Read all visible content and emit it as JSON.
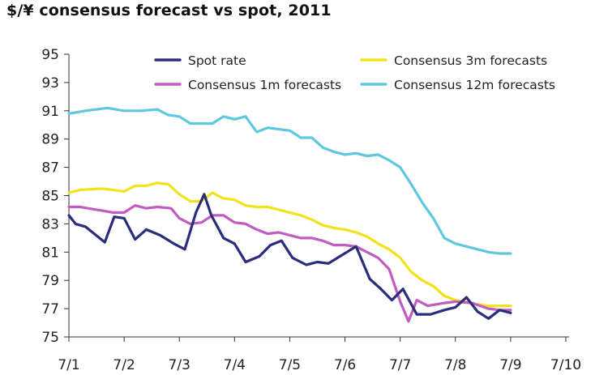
{
  "chart_data": {
    "type": "line",
    "title": "$/¥ consensus forecast vs spot, 2011",
    "xlabel": "",
    "ylabel": "",
    "ylim": [
      75,
      95
    ],
    "x_tick_labels": [
      "7/1",
      "7/2",
      "7/3",
      "7/4",
      "7/5",
      "7/6",
      "7/7",
      "7/8",
      "7/9",
      "7/10"
    ],
    "y_ticks": [
      75,
      77,
      79,
      81,
      83,
      85,
      87,
      89,
      91,
      93,
      95
    ],
    "legend_position": "top-right",
    "series": [
      {
        "name": "Spot rate",
        "color": "#2b2d7c",
        "points": [
          [
            0,
            83.6
          ],
          [
            0.12,
            83.0
          ],
          [
            0.3,
            82.8
          ],
          [
            0.65,
            81.7
          ],
          [
            0.82,
            83.5
          ],
          [
            1,
            83.4
          ],
          [
            1.2,
            81.9
          ],
          [
            1.4,
            82.6
          ],
          [
            1.65,
            82.2
          ],
          [
            1.9,
            81.6
          ],
          [
            2.1,
            81.2
          ],
          [
            2.3,
            83.8
          ],
          [
            2.45,
            85.1
          ],
          [
            2.58,
            83.6
          ],
          [
            2.8,
            82.0
          ],
          [
            3.0,
            81.6
          ],
          [
            3.2,
            80.3
          ],
          [
            3.45,
            80.7
          ],
          [
            3.65,
            81.5
          ],
          [
            3.85,
            81.8
          ],
          [
            4.05,
            80.6
          ],
          [
            4.3,
            80.1
          ],
          [
            4.5,
            80.3
          ],
          [
            4.7,
            80.2
          ],
          [
            4.95,
            80.8
          ],
          [
            5.2,
            81.4
          ],
          [
            5.45,
            79.1
          ],
          [
            5.65,
            78.4
          ],
          [
            5.85,
            77.6
          ],
          [
            6.05,
            78.4
          ],
          [
            6.3,
            76.6
          ],
          [
            6.55,
            76.6
          ],
          [
            6.8,
            76.9
          ],
          [
            7.0,
            77.1
          ],
          [
            7.2,
            77.8
          ],
          [
            7.4,
            76.8
          ],
          [
            7.6,
            76.3
          ],
          [
            7.8,
            76.9
          ],
          [
            8.0,
            76.7
          ]
        ]
      },
      {
        "name": "Consensus 1m forecasts",
        "color": "#c25cc0",
        "points": [
          [
            0,
            84.2
          ],
          [
            0.2,
            84.2
          ],
          [
            0.5,
            84.0
          ],
          [
            0.8,
            83.8
          ],
          [
            1.0,
            83.8
          ],
          [
            1.2,
            84.3
          ],
          [
            1.4,
            84.1
          ],
          [
            1.6,
            84.2
          ],
          [
            1.85,
            84.1
          ],
          [
            2.0,
            83.4
          ],
          [
            2.2,
            83.0
          ],
          [
            2.4,
            83.1
          ],
          [
            2.6,
            83.6
          ],
          [
            2.8,
            83.6
          ],
          [
            3.0,
            83.1
          ],
          [
            3.2,
            83.0
          ],
          [
            3.4,
            82.6
          ],
          [
            3.6,
            82.3
          ],
          [
            3.8,
            82.4
          ],
          [
            4.0,
            82.2
          ],
          [
            4.2,
            82.0
          ],
          [
            4.4,
            82.0
          ],
          [
            4.6,
            81.8
          ],
          [
            4.8,
            81.5
          ],
          [
            5.0,
            81.5
          ],
          [
            5.2,
            81.4
          ],
          [
            5.4,
            81.0
          ],
          [
            5.6,
            80.6
          ],
          [
            5.8,
            79.8
          ],
          [
            6.0,
            77.5
          ],
          [
            6.15,
            76.1
          ],
          [
            6.3,
            77.6
          ],
          [
            6.5,
            77.2
          ],
          [
            6.8,
            77.4
          ],
          [
            7.0,
            77.5
          ],
          [
            7.3,
            77.4
          ],
          [
            7.6,
            77.0
          ],
          [
            7.8,
            76.9
          ],
          [
            8.0,
            76.9
          ]
        ]
      },
      {
        "name": "Consensus 3m forecasts",
        "color": "#f2e21c",
        "points": [
          [
            0,
            85.2
          ],
          [
            0.2,
            85.4
          ],
          [
            0.6,
            85.5
          ],
          [
            1.0,
            85.3
          ],
          [
            1.2,
            85.7
          ],
          [
            1.4,
            85.7
          ],
          [
            1.6,
            85.9
          ],
          [
            1.8,
            85.8
          ],
          [
            2.0,
            85.1
          ],
          [
            2.2,
            84.6
          ],
          [
            2.4,
            84.6
          ],
          [
            2.6,
            85.2
          ],
          [
            2.8,
            84.8
          ],
          [
            3.0,
            84.7
          ],
          [
            3.2,
            84.3
          ],
          [
            3.4,
            84.2
          ],
          [
            3.6,
            84.2
          ],
          [
            3.8,
            84.0
          ],
          [
            4.0,
            83.8
          ],
          [
            4.2,
            83.6
          ],
          [
            4.4,
            83.3
          ],
          [
            4.6,
            82.9
          ],
          [
            4.8,
            82.7
          ],
          [
            5.0,
            82.6
          ],
          [
            5.2,
            82.4
          ],
          [
            5.4,
            82.1
          ],
          [
            5.6,
            81.6
          ],
          [
            5.8,
            81.2
          ],
          [
            6.0,
            80.6
          ],
          [
            6.2,
            79.6
          ],
          [
            6.4,
            79.0
          ],
          [
            6.6,
            78.6
          ],
          [
            6.8,
            77.9
          ],
          [
            7.0,
            77.6
          ],
          [
            7.2,
            77.5
          ],
          [
            7.4,
            77.3
          ],
          [
            7.6,
            77.2
          ],
          [
            7.8,
            77.2
          ],
          [
            8.0,
            77.2
          ]
        ]
      },
      {
        "name": "Consensus 12m forecasts",
        "color": "#5ec8de",
        "points": [
          [
            0,
            90.8
          ],
          [
            0.3,
            91.0
          ],
          [
            0.7,
            91.2
          ],
          [
            1.0,
            91.0
          ],
          [
            1.3,
            91.0
          ],
          [
            1.6,
            91.1
          ],
          [
            1.8,
            90.7
          ],
          [
            2.0,
            90.6
          ],
          [
            2.2,
            90.1
          ],
          [
            2.4,
            90.1
          ],
          [
            2.6,
            90.1
          ],
          [
            2.8,
            90.6
          ],
          [
            3.0,
            90.4
          ],
          [
            3.2,
            90.6
          ],
          [
            3.4,
            89.5
          ],
          [
            3.6,
            89.8
          ],
          [
            3.8,
            89.7
          ],
          [
            4.0,
            89.6
          ],
          [
            4.2,
            89.1
          ],
          [
            4.4,
            89.1
          ],
          [
            4.6,
            88.4
          ],
          [
            4.8,
            88.1
          ],
          [
            5.0,
            87.9
          ],
          [
            5.2,
            88.0
          ],
          [
            5.4,
            87.8
          ],
          [
            5.6,
            87.9
          ],
          [
            5.8,
            87.5
          ],
          [
            6.0,
            87.0
          ],
          [
            6.2,
            85.8
          ],
          [
            6.4,
            84.5
          ],
          [
            6.6,
            83.4
          ],
          [
            6.8,
            82.0
          ],
          [
            7.0,
            81.6
          ],
          [
            7.2,
            81.4
          ],
          [
            7.4,
            81.2
          ],
          [
            7.6,
            81.0
          ],
          [
            7.8,
            80.9
          ],
          [
            8.0,
            80.9
          ]
        ]
      }
    ]
  }
}
